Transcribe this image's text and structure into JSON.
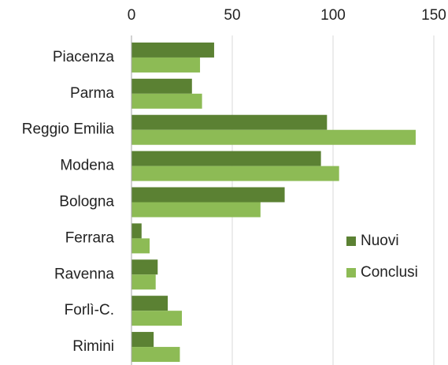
{
  "chart_data": {
    "type": "hbar",
    "categories": [
      "Piacenza",
      "Parma",
      "Reggio Emilia",
      "Modena",
      "Bologna",
      "Ferrara",
      "Ravenna",
      "Forlì-C.",
      "Rimini"
    ],
    "series": [
      {
        "name": "Nuovi",
        "color": "#5b8133",
        "values": [
          41,
          30,
          97,
          94,
          76,
          5,
          13,
          18,
          11
        ]
      },
      {
        "name": "Conclusi",
        "color": "#8dbb55",
        "values": [
          34,
          35,
          141,
          103,
          64,
          9,
          12,
          25,
          24
        ]
      }
    ],
    "xlim": [
      0,
      150
    ],
    "xticks": [
      0,
      50,
      100,
      150
    ],
    "grid": true,
    "legend": "lower right"
  }
}
